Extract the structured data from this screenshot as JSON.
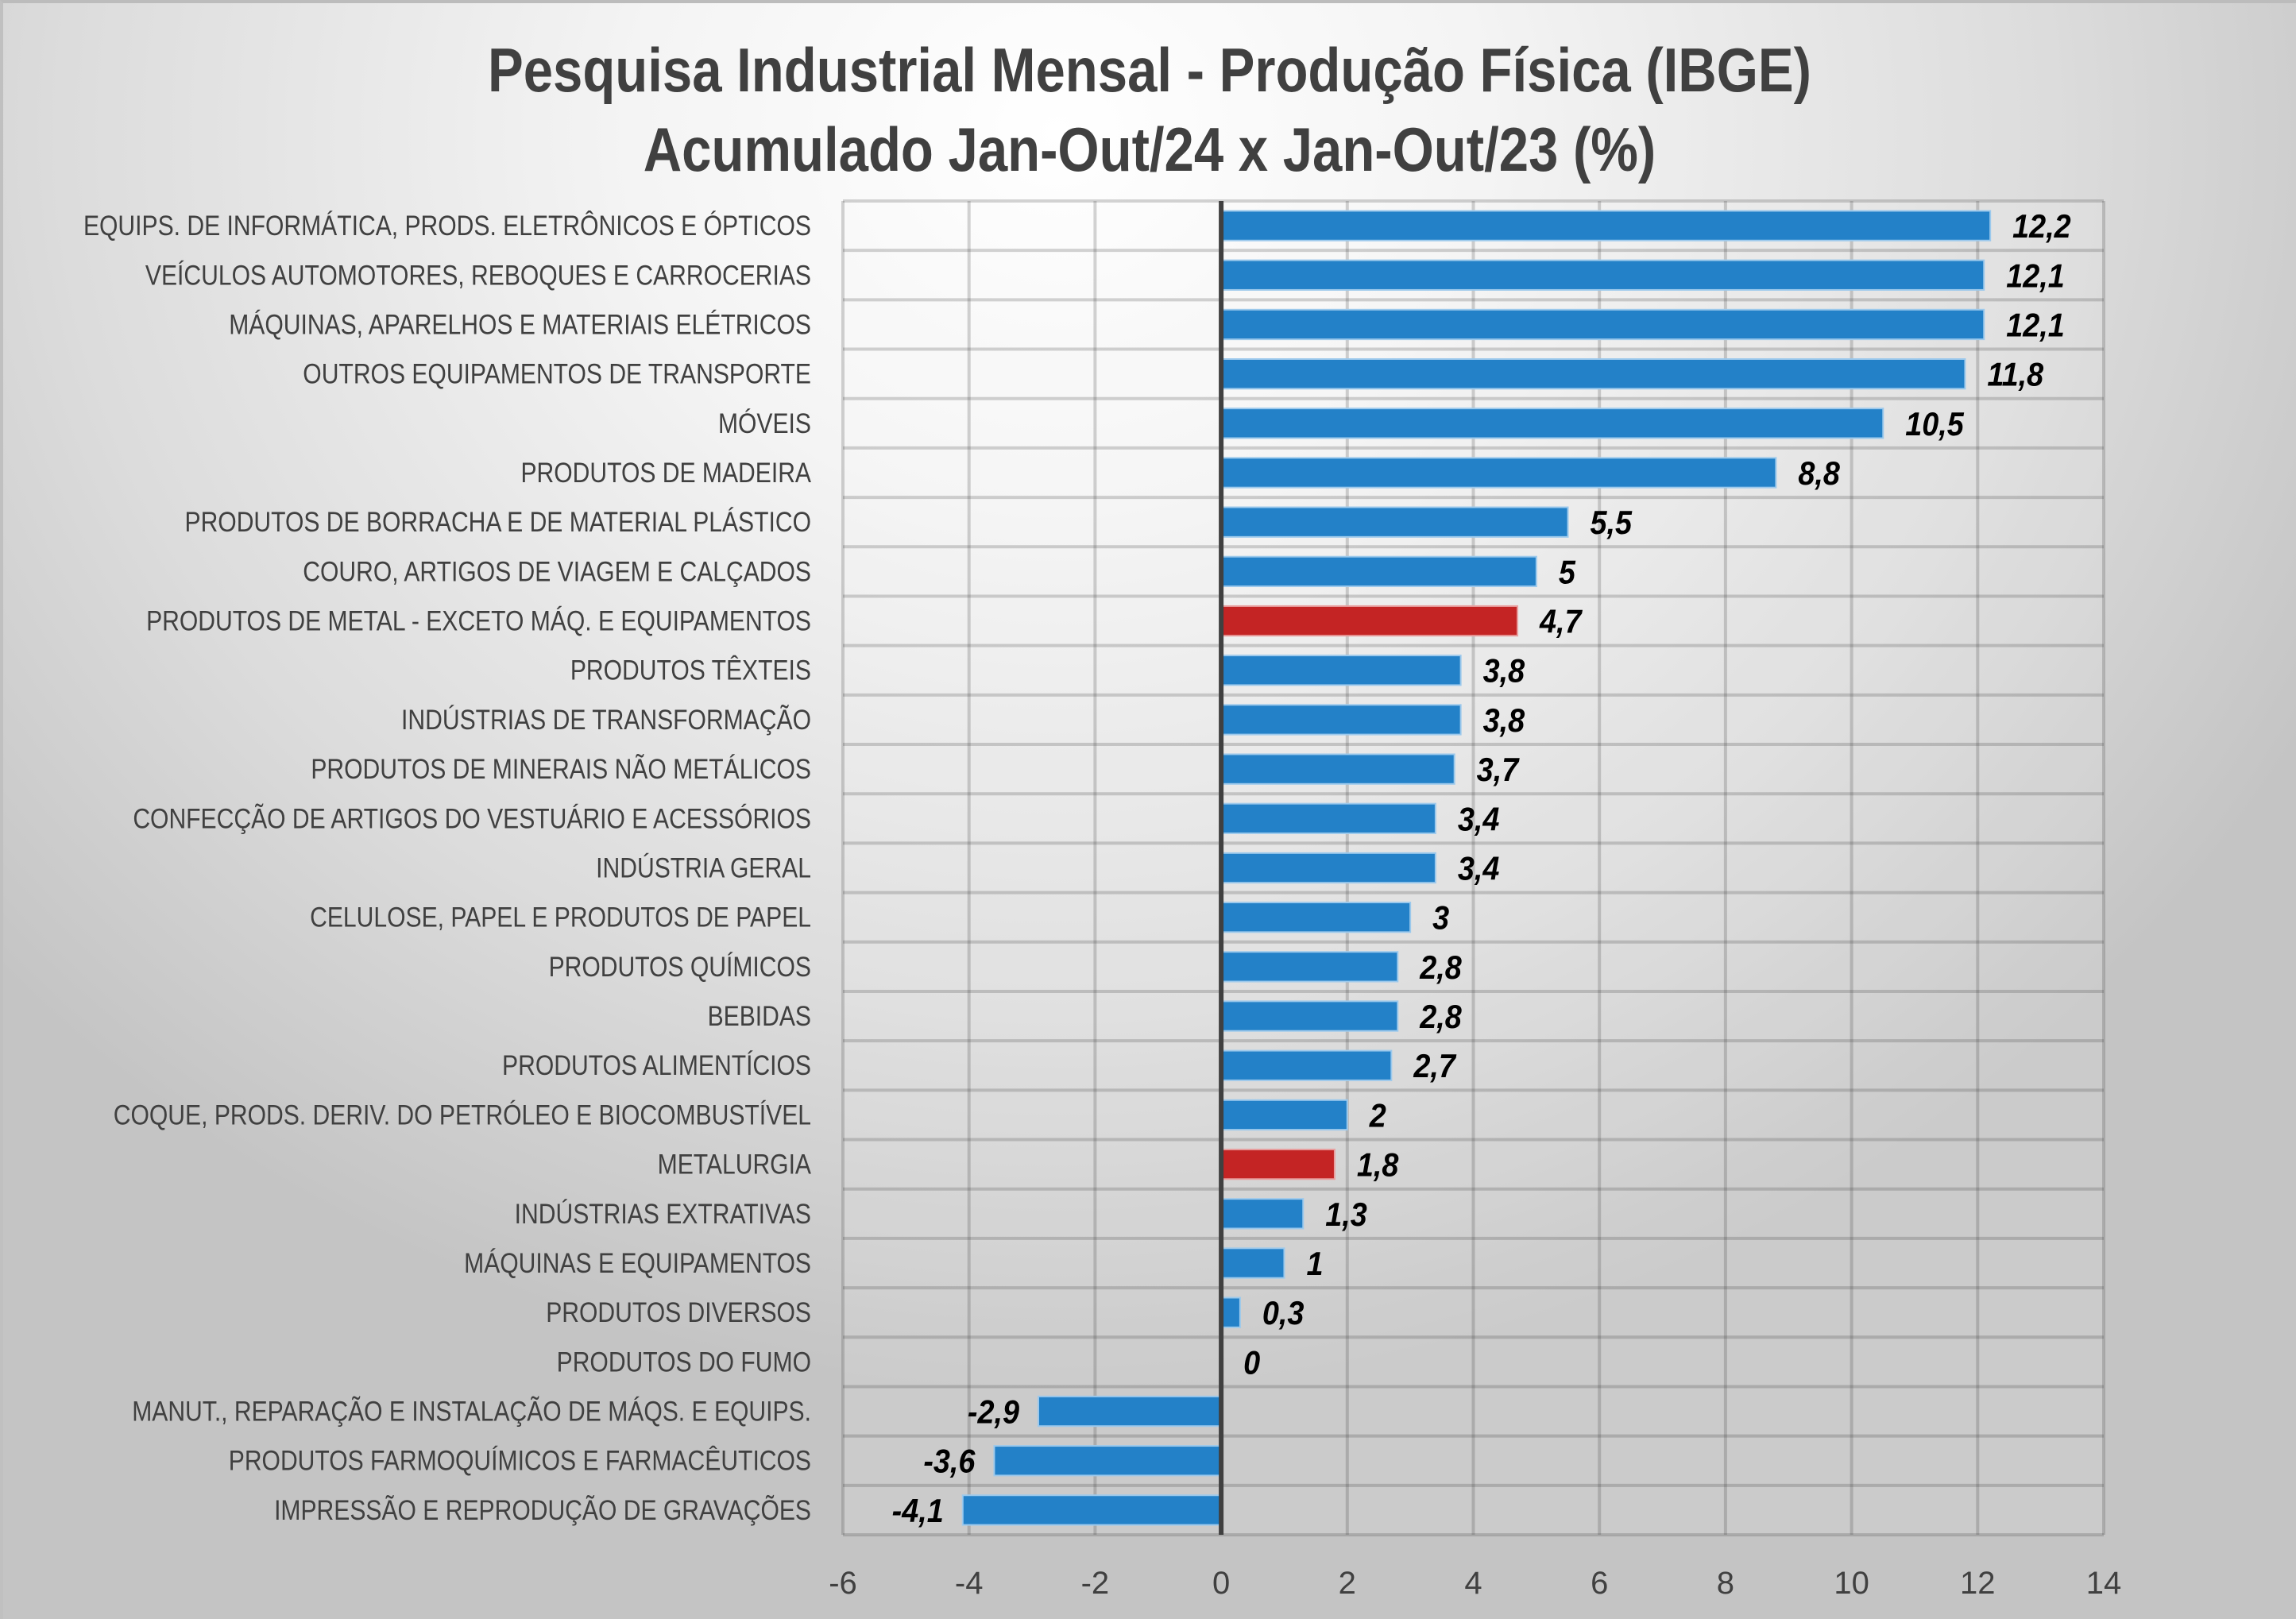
{
  "chart_data": {
    "type": "bar",
    "orientation": "horizontal",
    "title": "Pesquisa Industrial Mensal - Produção Física (IBGE)",
    "subtitle": "Acumulado Jan-Out/24 x Jan-Out/23 (%)",
    "xlabel": "",
    "ylabel": "",
    "xlim": [
      -6,
      14
    ],
    "x_ticks": [
      -6,
      -4,
      -2,
      0,
      2,
      4,
      6,
      8,
      10,
      12,
      14
    ],
    "x_tick_labels": [
      "-6",
      "-4",
      "-2",
      "0",
      "2",
      "4",
      "6",
      "8",
      "10",
      "12",
      "14"
    ],
    "grid": true,
    "legend": "none",
    "colors": {
      "default": "#2381C8",
      "highlight": "#C42424",
      "axis": "#404040"
    },
    "categories": [
      "EQUIPS. DE INFORMÁTICA, PRODS. ELETRÔNICOS E ÓPTICOS",
      "VEÍCULOS AUTOMOTORES, REBOQUES E CARROCERIAS",
      "MÁQUINAS, APARELHOS E MATERIAIS ELÉTRICOS",
      "OUTROS EQUIPAMENTOS DE TRANSPORTE",
      "MÓVEIS",
      "PRODUTOS DE MADEIRA",
      "PRODUTOS DE BORRACHA E DE MATERIAL PLÁSTICO",
      "COURO, ARTIGOS DE VIAGEM E CALÇADOS",
      "PRODUTOS DE METAL - EXCETO MÁQ. E EQUIPAMENTOS",
      "PRODUTOS TÊXTEIS",
      "INDÚSTRIAS DE TRANSFORMAÇÃO",
      "PRODUTOS DE MINERAIS NÃO METÁLICOS",
      "CONFECÇÃO DE ARTIGOS DO VESTUÁRIO E ACESSÓRIOS",
      "INDÚSTRIA GERAL",
      "CELULOSE, PAPEL E PRODUTOS DE PAPEL",
      "PRODUTOS QUÍMICOS",
      "BEBIDAS",
      "PRODUTOS ALIMENTÍCIOS",
      "COQUE, PRODS. DERIV. DO PETRÓLEO E BIOCOMBUSTÍVEL",
      "METALURGIA",
      "INDÚSTRIAS EXTRATIVAS",
      "MÁQUINAS E EQUIPAMENTOS",
      "PRODUTOS DIVERSOS",
      "PRODUTOS DO FUMO",
      "MANUT., REPARAÇÃO E INSTALAÇÃO DE MÁQS. E EQUIPS.",
      "PRODUTOS FARMOQUÍMICOS E FARMACÊUTICOS",
      "IMPRESSÃO E REPRODUÇÃO DE GRAVAÇÕES"
    ],
    "values": [
      12.2,
      12.1,
      12.1,
      11.8,
      10.5,
      8.8,
      5.5,
      5,
      4.7,
      3.8,
      3.8,
      3.7,
      3.4,
      3.4,
      3,
      2.8,
      2.8,
      2.7,
      2,
      1.8,
      1.3,
      1,
      0.3,
      0,
      -2.9,
      -3.6,
      -4.1
    ],
    "value_labels": [
      "12,2",
      "12,1",
      "12,1",
      "11,8",
      "10,5",
      "8,8",
      "5,5",
      "5",
      "4,7",
      "3,8",
      "3,8",
      "3,7",
      "3,4",
      "3,4",
      "3",
      "2,8",
      "2,8",
      "2,7",
      "2",
      "1,8",
      "1,3",
      "1",
      "0,3",
      "0",
      "-2,9",
      "-3,6",
      "-4,1"
    ],
    "highlighted": [
      "PRODUTOS DE METAL - EXCETO MÁQ. E EQUIPAMENTOS",
      "METALURGIA"
    ]
  }
}
